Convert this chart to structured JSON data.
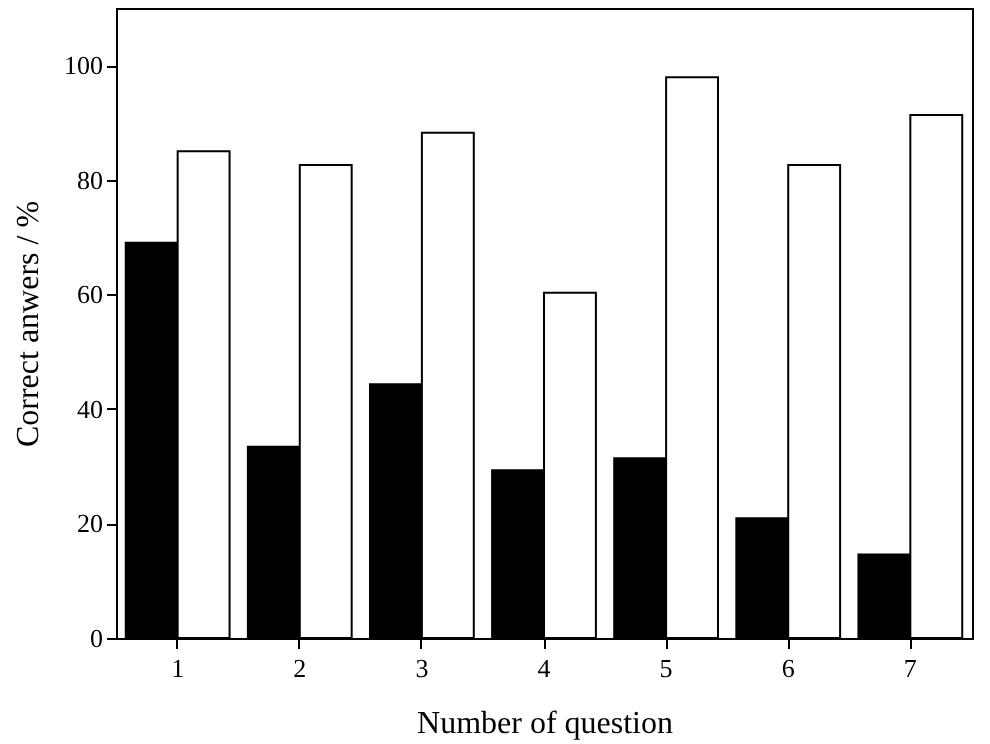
{
  "chart_data": {
    "type": "bar",
    "xlabel": "Number of question",
    "ylabel": "Correct anwers / %",
    "categories": [
      "1",
      "2",
      "3",
      "4",
      "5",
      "6",
      "7"
    ],
    "series": [
      {
        "color": "#000000",
        "values": [
          69,
          33.4,
          44.3,
          29.3,
          31.4,
          20.9,
          14.6
        ]
      },
      {
        "color": "#ffffff",
        "values": [
          85,
          82.6,
          88.2,
          60.3,
          97.9,
          82.6,
          91.3
        ]
      }
    ],
    "ylim": [
      0,
      110
    ],
    "yticks": [
      0,
      20,
      40,
      60,
      80,
      100
    ],
    "grid": false,
    "legend": false
  }
}
